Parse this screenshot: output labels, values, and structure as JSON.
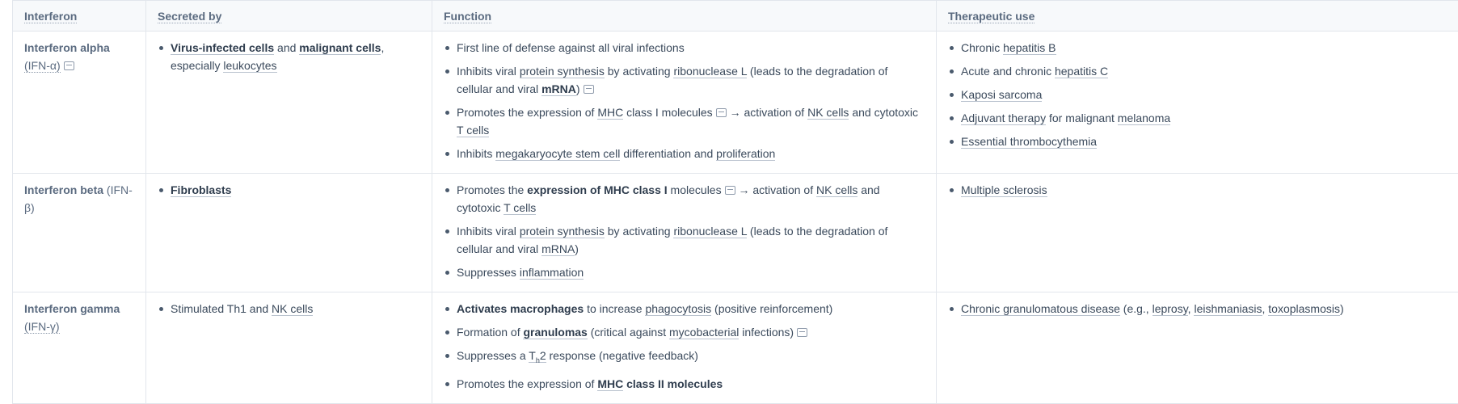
{
  "table": {
    "headers": {
      "interferon": "Interferon",
      "secreted_by": "Secreted by",
      "function": "Function",
      "therapeutic_use": "Therapeutic use"
    },
    "rows": [
      {
        "name": "Interferon alpha",
        "abbr": "(IFN-α)",
        "secreted": [
          {
            "a": "Virus-infected cells",
            "b": " and ",
            "c": "malignant cells",
            "d": ", especially ",
            "e": "leukocytes"
          }
        ],
        "function": [
          "First line of defense against all viral infections",
          {
            "a": "Inhibits viral ",
            "b": "protein synthesis",
            "c": " by activating ",
            "d": "ribonuclease L",
            "e": " (leads to the degradation of cellular and viral ",
            "f": "mRNA",
            "g": ")"
          },
          {
            "a": "Promotes the expression of ",
            "b": "MHC",
            "c": " class I molecules",
            "d": " → activation of ",
            "e": "NK cells",
            "f": " and cytotoxic ",
            "g": "T cells"
          },
          {
            "a": "Inhibits ",
            "b": "megakaryocyte stem cell",
            "c": " differentiation and ",
            "d": "proliferation"
          }
        ],
        "therapeutic": [
          {
            "a": "Chronic ",
            "b": "hepatitis B"
          },
          {
            "a": "Acute and chronic ",
            "b": "hepatitis C"
          },
          {
            "b": "Kaposi sarcoma"
          },
          {
            "b": "Adjuvant therapy",
            "a": " for malignant ",
            "c": "melanoma"
          },
          {
            "b": "Essential thrombocythemia"
          }
        ]
      },
      {
        "name": "Interferon beta",
        "abbr": "(IFN-β)",
        "secreted": [
          "Fibroblasts"
        ],
        "function": [
          {
            "a": "Promotes the ",
            "b": "expression of MHC class I",
            "c": " molecules",
            "d": " → activation of ",
            "e": "NK cells",
            "f": " and cytotoxic ",
            "g": "T cells"
          },
          {
            "a": "Inhibits viral ",
            "b": "protein synthesis",
            "c": " by activating ",
            "d": "ribonuclease L",
            "e": " (leads to the degradation of cellular and viral ",
            "f": "mRNA",
            "g": ")"
          },
          {
            "a": "Suppresses ",
            "b": "inflammation"
          }
        ],
        "therapeutic": [
          "Multiple sclerosis"
        ]
      },
      {
        "name": "Interferon gamma",
        "abbr": "(IFN-γ)",
        "secreted": [
          {
            "a": "Stimulated Th1 and ",
            "b": "NK cells"
          }
        ],
        "function": [
          {
            "a": "Activates macrophages",
            "b": " to increase ",
            "c": "phagocytosis",
            "d": " (positive reinforcement)"
          },
          {
            "a": "Formation of ",
            "b": "granulomas",
            "c": " (critical against ",
            "d": "mycobacterial",
            "e": " infections)"
          },
          {
            "a": "Suppresses a ",
            "b": "T",
            "c": "h",
            "d": "2",
            "e": " response (negative feedback)"
          },
          {
            "a": "Promotes the expression of ",
            "b": "MHC",
            "c": " class II molecules"
          }
        ],
        "therapeutic": [
          {
            "a": "Chronic granulomatous disease",
            "b": " (e.g., ",
            "c": "leprosy",
            "d": ", ",
            "e": "leishmaniasis",
            "f": ", ",
            "g": "toxoplasmosis",
            "h": ")"
          }
        ]
      }
    ]
  },
  "icons": {
    "note": "note-icon"
  }
}
